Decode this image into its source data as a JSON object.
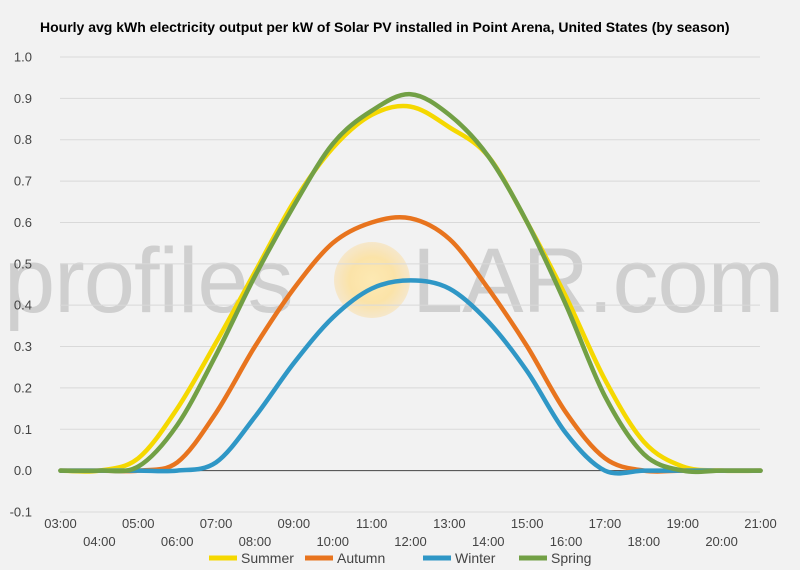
{
  "chart_data": {
    "type": "line",
    "title": "Hourly avg kWh electricity output per kW of Solar PV installed in Point Arena, United States (by season)",
    "xlabel": "",
    "ylabel": "",
    "ylim": [
      -0.1,
      1.0
    ],
    "yticks": [
      "-0.1",
      "0.0",
      "0.1",
      "0.2",
      "0.3",
      "0.4",
      "0.5",
      "0.6",
      "0.7",
      "0.8",
      "0.9",
      "1.0"
    ],
    "x": [
      "03:00",
      "04:00",
      "05:00",
      "06:00",
      "07:00",
      "08:00",
      "09:00",
      "10:00",
      "11:00",
      "12:00",
      "13:00",
      "14:00",
      "15:00",
      "16:00",
      "17:00",
      "18:00",
      "19:00",
      "20:00",
      "21:00"
    ],
    "grid": true,
    "legend_position": "bottom",
    "series": [
      {
        "name": "Summer",
        "color": "#f5d800",
        "values": [
          0.0,
          0.0,
          0.03,
          0.15,
          0.31,
          0.48,
          0.65,
          0.78,
          0.86,
          0.88,
          0.83,
          0.76,
          0.6,
          0.42,
          0.22,
          0.07,
          0.01,
          0.0,
          0.0
        ]
      },
      {
        "name": "Autumn",
        "color": "#e8741e",
        "values": [
          0.0,
          0.0,
          0.0,
          0.02,
          0.14,
          0.3,
          0.44,
          0.55,
          0.6,
          0.61,
          0.56,
          0.44,
          0.3,
          0.14,
          0.03,
          0.0,
          0.0,
          0.0,
          0.0
        ]
      },
      {
        "name": "Winter",
        "color": "#2f97c6",
        "values": [
          0.0,
          0.0,
          0.0,
          0.0,
          0.02,
          0.13,
          0.26,
          0.37,
          0.44,
          0.46,
          0.44,
          0.36,
          0.24,
          0.09,
          0.0,
          0.0,
          0.0,
          0.0,
          0.0
        ]
      },
      {
        "name": "Spring",
        "color": "#72a045",
        "values": [
          0.0,
          0.0,
          0.01,
          0.11,
          0.28,
          0.47,
          0.64,
          0.79,
          0.87,
          0.91,
          0.86,
          0.76,
          0.6,
          0.4,
          0.18,
          0.04,
          0.0,
          0.0,
          0.0
        ]
      }
    ],
    "watermark": {
      "before": "profiles",
      "after": "LAR.com"
    }
  }
}
